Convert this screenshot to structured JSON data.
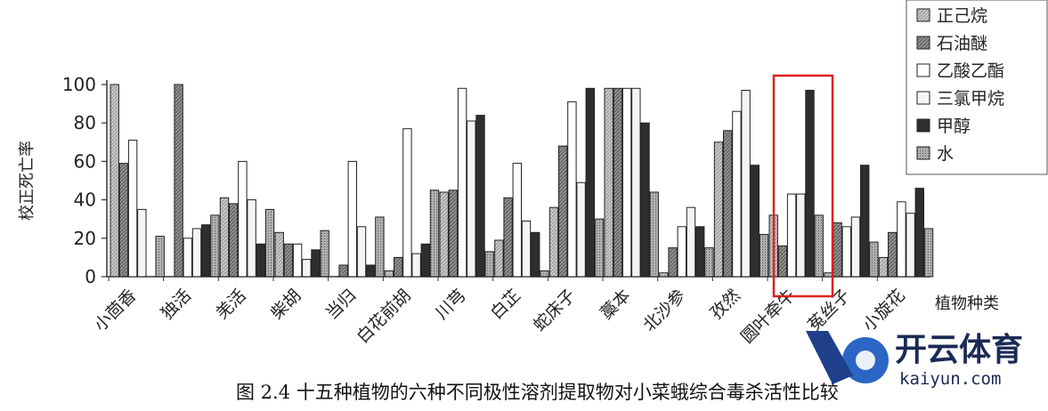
{
  "chart_data": {
    "type": "bar",
    "ylabel": "校正死亡率",
    "xlabel": "植物种类",
    "ylim": [
      0,
      100
    ],
    "yticks": [
      0,
      20,
      40,
      60,
      80,
      100
    ],
    "legend_position": "top-right",
    "caption": "图 2.4 十五种植物的六种不同极性溶剂提取物对小菜蛾综合毒杀活性比较",
    "categories": [
      "小茴香",
      "独活",
      "羌活",
      "柴胡",
      "当归",
      "白花前胡",
      "川芎",
      "白芷",
      "蛇床子",
      "藁本",
      "北沙参",
      "孜然",
      "圆叶牵牛",
      "菟丝子",
      "小旋花"
    ],
    "series": [
      {
        "name": "正己烷",
        "values": [
          100,
          0,
          41,
          23,
          0,
          3,
          44,
          19,
          36,
          98,
          2,
          70,
          32,
          2,
          10
        ],
        "color": "#b5b5b5"
      },
      {
        "name": "石油醚",
        "values": [
          59,
          100,
          38,
          17,
          6,
          10,
          45,
          41,
          68,
          98,
          15,
          76,
          16,
          28,
          23
        ],
        "color": "#7a7a7a"
      },
      {
        "name": "乙酸乙酯",
        "values": [
          71,
          20,
          60,
          17,
          60,
          77,
          98,
          59,
          91,
          98,
          26,
          86,
          43,
          26,
          39
        ],
        "color": "#ffffff"
      },
      {
        "name": "三氯甲烷",
        "values": [
          35,
          25,
          40,
          9,
          26,
          12,
          81,
          29,
          49,
          98,
          36,
          97,
          43,
          31,
          33
        ],
        "color": "#f2f2f2"
      },
      {
        "name": "甲醇",
        "values": [
          0,
          27,
          17,
          14,
          6,
          17,
          84,
          23,
          98,
          80,
          26,
          58,
          97,
          58,
          46
        ],
        "color": "#333333"
      },
      {
        "name": "水",
        "values": [
          21,
          32,
          35,
          24,
          31,
          45,
          13,
          3,
          30,
          44,
          15,
          22,
          32,
          18,
          25
        ],
        "color": "#a0a0a0"
      }
    ]
  },
  "watermark": {
    "brand_cn": "开云体育",
    "brand_en": "kaiyun.com"
  },
  "highlight": {
    "category": "圆叶牵牛",
    "color": "#e02020"
  }
}
